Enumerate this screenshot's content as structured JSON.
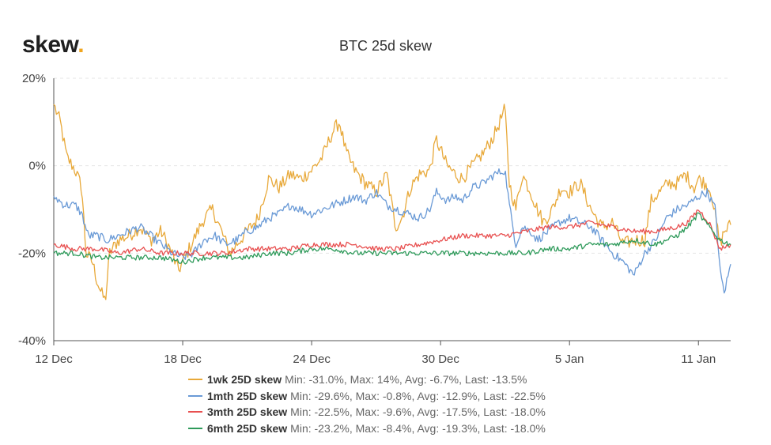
{
  "brand": {
    "name": "skew",
    "dot": "."
  },
  "chart_data": {
    "type": "line",
    "title": "BTC 25d skew",
    "xlabel": "",
    "ylabel": "",
    "x_ticks": [
      "12 Dec",
      "18 Dec",
      "24 Dec",
      "30 Dec",
      "5 Jan",
      "11 Jan"
    ],
    "x_tick_days": [
      0,
      6,
      12,
      18,
      24,
      30
    ],
    "x_range_days": [
      0,
      31.5
    ],
    "y_ticks": [
      "20%",
      "0%",
      "-20%",
      "-40%"
    ],
    "y_tick_values": [
      20,
      0,
      -20,
      -40
    ],
    "ylim": [
      -40,
      20
    ],
    "grid": true,
    "legend_position": "bottom",
    "series": [
      {
        "name": "1wk 25D skew",
        "stats": "Min: -31.0%, Max: 14%, Avg: -6.7%, Last: -13.5%",
        "color": "#e8a93a",
        "keypoints": [
          [
            0,
            14
          ],
          [
            0.3,
            10
          ],
          [
            0.6,
            2
          ],
          [
            1,
            -1
          ],
          [
            1.3,
            -5
          ],
          [
            1.5,
            -20
          ],
          [
            1.8,
            -22
          ],
          [
            2,
            -26
          ],
          [
            2.2,
            -29
          ],
          [
            2.4,
            -31
          ],
          [
            2.6,
            -20
          ],
          [
            3,
            -17
          ],
          [
            3.5,
            -16
          ],
          [
            4,
            -14
          ],
          [
            4.5,
            -17
          ],
          [
            5,
            -15
          ],
          [
            5.5,
            -20
          ],
          [
            5.8,
            -24
          ],
          [
            6.1,
            -21
          ],
          [
            6.5,
            -17
          ],
          [
            7,
            -12
          ],
          [
            7.4,
            -10
          ],
          [
            7.8,
            -15
          ],
          [
            8.2,
            -20
          ],
          [
            8.5,
            -18
          ],
          [
            9,
            -15
          ],
          [
            9.5,
            -12
          ],
          [
            10,
            -3
          ],
          [
            10.5,
            -5
          ],
          [
            11,
            -2
          ],
          [
            11.5,
            -3
          ],
          [
            12,
            -1
          ],
          [
            12.5,
            2
          ],
          [
            13,
            8
          ],
          [
            13.3,
            10
          ],
          [
            13.6,
            3
          ],
          [
            14,
            -1
          ],
          [
            14.5,
            -4
          ],
          [
            15,
            -6
          ],
          [
            15.5,
            -2
          ],
          [
            15.9,
            -14
          ],
          [
            16.2,
            -12
          ],
          [
            16.6,
            -5
          ],
          [
            17,
            -2
          ],
          [
            17.5,
            -1
          ],
          [
            17.8,
            6
          ],
          [
            18.3,
            0
          ],
          [
            18.7,
            -2
          ],
          [
            19,
            -3
          ],
          [
            19.5,
            0
          ],
          [
            20,
            3
          ],
          [
            20.5,
            7
          ],
          [
            21,
            13
          ],
          [
            21.2,
            -4
          ],
          [
            21.5,
            -10
          ],
          [
            21.8,
            -2
          ],
          [
            22.2,
            -6
          ],
          [
            22.5,
            -10
          ],
          [
            22.8,
            -13
          ],
          [
            23.2,
            -10
          ],
          [
            23.6,
            -5
          ],
          [
            24,
            -6
          ],
          [
            24.5,
            -4
          ],
          [
            25,
            -10
          ],
          [
            25.5,
            -14
          ],
          [
            26,
            -13
          ],
          [
            26.5,
            -18
          ],
          [
            27,
            -17
          ],
          [
            27.5,
            -17
          ],
          [
            27.8,
            -8
          ],
          [
            28.2,
            -6
          ],
          [
            28.6,
            -4
          ],
          [
            29,
            -4
          ],
          [
            29.4,
            -2
          ],
          [
            29.8,
            -5
          ],
          [
            30,
            -3
          ],
          [
            30.3,
            -4
          ],
          [
            30.6,
            -6
          ],
          [
            30.8,
            -12
          ],
          [
            31,
            -18
          ],
          [
            31.2,
            -15
          ],
          [
            31.5,
            -13.5
          ]
        ]
      },
      {
        "name": "1mth 25D skew",
        "stats": "Min: -29.6%, Max: -0.8%, Avg: -12.9%, Last: -22.5%",
        "color": "#6a9ad6",
        "keypoints": [
          [
            0,
            -7
          ],
          [
            0.5,
            -9
          ],
          [
            1,
            -9
          ],
          [
            1.3,
            -11
          ],
          [
            1.6,
            -16
          ],
          [
            2,
            -16
          ],
          [
            2.5,
            -17
          ],
          [
            3,
            -16
          ],
          [
            3.5,
            -15
          ],
          [
            4,
            -14
          ],
          [
            4.5,
            -16
          ],
          [
            5,
            -18
          ],
          [
            5.5,
            -20
          ],
          [
            6,
            -21
          ],
          [
            6.5,
            -20
          ],
          [
            7,
            -17
          ],
          [
            7.5,
            -16
          ],
          [
            8,
            -18
          ],
          [
            8.5,
            -17
          ],
          [
            9,
            -15
          ],
          [
            9.5,
            -14
          ],
          [
            10,
            -12
          ],
          [
            10.5,
            -11
          ],
          [
            11,
            -9
          ],
          [
            11.5,
            -10
          ],
          [
            12,
            -11
          ],
          [
            12.5,
            -10
          ],
          [
            13,
            -9
          ],
          [
            13.5,
            -8
          ],
          [
            14,
            -7
          ],
          [
            14.5,
            -8
          ],
          [
            15,
            -6
          ],
          [
            15.5,
            -9
          ],
          [
            16,
            -10
          ],
          [
            16.5,
            -11
          ],
          [
            17,
            -12
          ],
          [
            17.5,
            -10
          ],
          [
            17.8,
            -6
          ],
          [
            18.3,
            -8
          ],
          [
            18.7,
            -7
          ],
          [
            19,
            -8
          ],
          [
            19.5,
            -5
          ],
          [
            20,
            -4
          ],
          [
            20.5,
            -2
          ],
          [
            21,
            -1
          ],
          [
            21.2,
            -9
          ],
          [
            21.5,
            -18
          ],
          [
            21.8,
            -14
          ],
          [
            22.2,
            -15
          ],
          [
            22.5,
            -17
          ],
          [
            23,
            -15
          ],
          [
            23.5,
            -13
          ],
          [
            24,
            -12
          ],
          [
            24.5,
            -13
          ],
          [
            25,
            -14
          ],
          [
            25.5,
            -17
          ],
          [
            26,
            -20
          ],
          [
            26.5,
            -22
          ],
          [
            27,
            -25
          ],
          [
            27.5,
            -20
          ],
          [
            28,
            -17
          ],
          [
            28.5,
            -12
          ],
          [
            29,
            -10
          ],
          [
            29.5,
            -9
          ],
          [
            30,
            -7
          ],
          [
            30.4,
            -6
          ],
          [
            30.8,
            -10
          ],
          [
            31,
            -24
          ],
          [
            31.2,
            -29
          ],
          [
            31.5,
            -22.5
          ]
        ]
      },
      {
        "name": "3mth 25D skew",
        "stats": "Min: -22.5%, Max: -9.6%, Avg: -17.5%, Last: -18.0%",
        "color": "#e85050",
        "keypoints": [
          [
            0,
            -18
          ],
          [
            1,
            -19
          ],
          [
            2,
            -19
          ],
          [
            3,
            -20
          ],
          [
            4,
            -19
          ],
          [
            5,
            -20
          ],
          [
            6,
            -20
          ],
          [
            7,
            -20
          ],
          [
            8,
            -20
          ],
          [
            9,
            -19
          ],
          [
            10,
            -19
          ],
          [
            11,
            -19
          ],
          [
            12,
            -18
          ],
          [
            13,
            -18
          ],
          [
            14,
            -18
          ],
          [
            15,
            -19
          ],
          [
            16,
            -19
          ],
          [
            17,
            -18
          ],
          [
            18,
            -17
          ],
          [
            19,
            -16
          ],
          [
            20,
            -16
          ],
          [
            21,
            -16
          ],
          [
            22,
            -15
          ],
          [
            23,
            -14
          ],
          [
            24,
            -14
          ],
          [
            25,
            -13
          ],
          [
            26,
            -14
          ],
          [
            27,
            -15
          ],
          [
            28,
            -15
          ],
          [
            29,
            -14
          ],
          [
            29.5,
            -13
          ],
          [
            30,
            -10
          ],
          [
            30.5,
            -13
          ],
          [
            31,
            -19
          ],
          [
            31.5,
            -18
          ]
        ]
      },
      {
        "name": "6mth 25D skew",
        "stats": "Min: -23.2%, Max: -8.4%, Avg: -19.3%, Last: -18.0%",
        "color": "#2e9a5a",
        "keypoints": [
          [
            0,
            -20
          ],
          [
            1,
            -20
          ],
          [
            2,
            -21
          ],
          [
            3,
            -21
          ],
          [
            4,
            -21
          ],
          [
            5,
            -21
          ],
          [
            6,
            -22
          ],
          [
            7,
            -21
          ],
          [
            8,
            -21
          ],
          [
            9,
            -21
          ],
          [
            10,
            -20
          ],
          [
            11,
            -20
          ],
          [
            12,
            -19
          ],
          [
            13,
            -19
          ],
          [
            14,
            -20
          ],
          [
            15,
            -20
          ],
          [
            16,
            -20
          ],
          [
            17,
            -20
          ],
          [
            18,
            -20
          ],
          [
            19,
            -20
          ],
          [
            20,
            -20
          ],
          [
            21,
            -20
          ],
          [
            22,
            -20
          ],
          [
            23,
            -19
          ],
          [
            24,
            -19
          ],
          [
            25,
            -18
          ],
          [
            26,
            -18
          ],
          [
            27,
            -17
          ],
          [
            28,
            -18
          ],
          [
            28.5,
            -17
          ],
          [
            29,
            -16
          ],
          [
            29.5,
            -14
          ],
          [
            30,
            -11
          ],
          [
            30.5,
            -14
          ],
          [
            31,
            -17
          ],
          [
            31.5,
            -18
          ]
        ]
      }
    ]
  }
}
